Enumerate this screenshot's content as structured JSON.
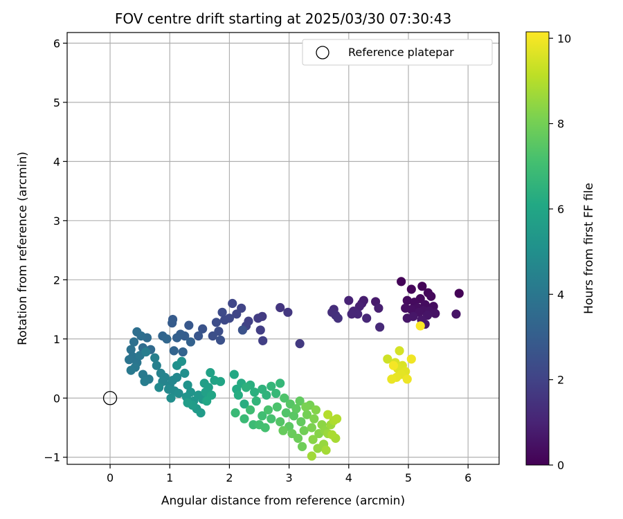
{
  "chart_data": {
    "type": "scatter",
    "title": "FOV centre drift starting at 2025/03/30 07:30:43",
    "xlabel": "Angular distance from reference (arcmin)",
    "ylabel": "Rotation from reference (arcmin)",
    "xlim": [
      -0.72,
      6.52
    ],
    "ylim": [
      -1.12,
      6.18
    ],
    "xticks": [
      0,
      1,
      2,
      3,
      4,
      5,
      6
    ],
    "yticks": [
      -1,
      0,
      1,
      2,
      3,
      4,
      5,
      6
    ],
    "grid": true,
    "legend": {
      "placement": "top-right",
      "entries": [
        "Reference platepar"
      ]
    },
    "reference_point": {
      "x": 0,
      "y": 0,
      "label": "Reference platepar"
    },
    "colorbar": {
      "label": "Hours from first FF file",
      "colormap": "viridis",
      "range": [
        0,
        10.15
      ],
      "ticks": [
        0,
        2,
        4,
        6,
        8,
        10
      ]
    },
    "points": [
      {
        "x": 5.85,
        "y": 1.77,
        "h": 0.05
      },
      {
        "x": 4.88,
        "y": 1.97,
        "h": 0.1
      },
      {
        "x": 5.23,
        "y": 1.89,
        "h": 0.12
      },
      {
        "x": 5.05,
        "y": 1.84,
        "h": 0.15
      },
      {
        "x": 5.33,
        "y": 1.78,
        "h": 0.18
      },
      {
        "x": 5.38,
        "y": 1.72,
        "h": 0.22
      },
      {
        "x": 5.2,
        "y": 1.68,
        "h": 0.25
      },
      {
        "x": 4.98,
        "y": 1.65,
        "h": 0.28
      },
      {
        "x": 5.1,
        "y": 1.62,
        "h": 0.3
      },
      {
        "x": 5.28,
        "y": 1.58,
        "h": 0.33
      },
      {
        "x": 5.42,
        "y": 1.55,
        "h": 0.35
      },
      {
        "x": 5.15,
        "y": 1.53,
        "h": 0.38
      },
      {
        "x": 4.95,
        "y": 1.52,
        "h": 0.4
      },
      {
        "x": 5.05,
        "y": 1.5,
        "h": 0.42
      },
      {
        "x": 5.25,
        "y": 1.48,
        "h": 0.45
      },
      {
        "x": 5.35,
        "y": 1.47,
        "h": 0.48
      },
      {
        "x": 5.18,
        "y": 1.45,
        "h": 0.5
      },
      {
        "x": 5.45,
        "y": 1.43,
        "h": 0.52
      },
      {
        "x": 5.8,
        "y": 1.42,
        "h": 0.55
      },
      {
        "x": 5.32,
        "y": 1.4,
        "h": 0.58
      },
      {
        "x": 5.08,
        "y": 1.38,
        "h": 0.6
      },
      {
        "x": 4.98,
        "y": 1.35,
        "h": 0.62
      },
      {
        "x": 5.22,
        "y": 1.32,
        "h": 0.65
      },
      {
        "x": 5.28,
        "y": 1.25,
        "h": 0.68
      },
      {
        "x": 4.45,
        "y": 1.63,
        "h": 0.75
      },
      {
        "x": 4.25,
        "y": 1.65,
        "h": 0.8
      },
      {
        "x": 4.22,
        "y": 1.6,
        "h": 0.85
      },
      {
        "x": 4.5,
        "y": 1.52,
        "h": 0.9
      },
      {
        "x": 4.18,
        "y": 1.55,
        "h": 0.95
      },
      {
        "x": 4.0,
        "y": 1.65,
        "h": 1.0
      },
      {
        "x": 4.08,
        "y": 1.47,
        "h": 1.05
      },
      {
        "x": 4.15,
        "y": 1.42,
        "h": 1.1
      },
      {
        "x": 4.05,
        "y": 1.42,
        "h": 1.12
      },
      {
        "x": 4.3,
        "y": 1.35,
        "h": 1.15
      },
      {
        "x": 4.52,
        "y": 1.2,
        "h": 1.2
      },
      {
        "x": 3.75,
        "y": 1.5,
        "h": 1.3
      },
      {
        "x": 3.72,
        "y": 1.45,
        "h": 1.35
      },
      {
        "x": 3.78,
        "y": 1.4,
        "h": 1.4
      },
      {
        "x": 3.82,
        "y": 1.35,
        "h": 1.45
      },
      {
        "x": 2.85,
        "y": 1.53,
        "h": 1.6
      },
      {
        "x": 2.98,
        "y": 1.45,
        "h": 1.65
      },
      {
        "x": 3.18,
        "y": 0.92,
        "h": 1.7
      },
      {
        "x": 2.55,
        "y": 1.38,
        "h": 1.75
      },
      {
        "x": 2.48,
        "y": 1.35,
        "h": 1.8
      },
      {
        "x": 2.52,
        "y": 1.15,
        "h": 1.85
      },
      {
        "x": 2.56,
        "y": 0.97,
        "h": 1.9
      },
      {
        "x": 2.32,
        "y": 1.3,
        "h": 1.95
      },
      {
        "x": 2.28,
        "y": 1.22,
        "h": 2.0
      },
      {
        "x": 2.2,
        "y": 1.52,
        "h": 2.05
      },
      {
        "x": 2.12,
        "y": 1.42,
        "h": 2.1
      },
      {
        "x": 2.05,
        "y": 1.6,
        "h": 2.15
      },
      {
        "x": 2.0,
        "y": 1.35,
        "h": 2.2
      },
      {
        "x": 1.92,
        "y": 1.32,
        "h": 2.25
      },
      {
        "x": 1.88,
        "y": 1.45,
        "h": 2.3
      },
      {
        "x": 1.78,
        "y": 1.28,
        "h": 2.35
      },
      {
        "x": 1.82,
        "y": 1.13,
        "h": 2.4
      },
      {
        "x": 1.72,
        "y": 1.05,
        "h": 2.45
      },
      {
        "x": 1.85,
        "y": 0.98,
        "h": 2.5
      },
      {
        "x": 2.22,
        "y": 1.15,
        "h": 2.55
      },
      {
        "x": 1.55,
        "y": 1.17,
        "h": 2.6
      },
      {
        "x": 1.48,
        "y": 1.05,
        "h": 2.7
      },
      {
        "x": 1.32,
        "y": 1.23,
        "h": 2.8
      },
      {
        "x": 1.05,
        "y": 1.33,
        "h": 2.9
      },
      {
        "x": 1.04,
        "y": 1.27,
        "h": 2.95
      },
      {
        "x": 1.25,
        "y": 1.05,
        "h": 3.0
      },
      {
        "x": 1.18,
        "y": 1.08,
        "h": 3.05
      },
      {
        "x": 1.12,
        "y": 1.02,
        "h": 3.1
      },
      {
        "x": 1.35,
        "y": 0.95,
        "h": 3.15
      },
      {
        "x": 1.22,
        "y": 0.78,
        "h": 3.2
      },
      {
        "x": 1.07,
        "y": 0.8,
        "h": 3.25
      },
      {
        "x": 0.88,
        "y": 1.05,
        "h": 3.3
      },
      {
        "x": 0.95,
        "y": 1.0,
        "h": 3.35
      },
      {
        "x": 0.68,
        "y": 0.82,
        "h": 3.5
      },
      {
        "x": 0.62,
        "y": 1.02,
        "h": 3.55
      },
      {
        "x": 0.55,
        "y": 0.85,
        "h": 3.6
      },
      {
        "x": 0.52,
        "y": 1.05,
        "h": 3.65
      },
      {
        "x": 0.45,
        "y": 1.12,
        "h": 3.7
      },
      {
        "x": 0.4,
        "y": 0.95,
        "h": 3.75
      },
      {
        "x": 0.35,
        "y": 0.82,
        "h": 3.8
      },
      {
        "x": 0.38,
        "y": 0.7,
        "h": 3.85
      },
      {
        "x": 0.32,
        "y": 0.65,
        "h": 3.9
      },
      {
        "x": 0.45,
        "y": 0.6,
        "h": 3.95
      },
      {
        "x": 0.5,
        "y": 0.72,
        "h": 4.0
      },
      {
        "x": 0.42,
        "y": 0.52,
        "h": 4.05
      },
      {
        "x": 0.35,
        "y": 0.47,
        "h": 4.1
      },
      {
        "x": 0.55,
        "y": 0.4,
        "h": 4.15
      },
      {
        "x": 0.65,
        "y": 0.32,
        "h": 4.2
      },
      {
        "x": 0.58,
        "y": 0.28,
        "h": 4.25
      },
      {
        "x": 0.6,
        "y": 0.78,
        "h": 4.3
      },
      {
        "x": 0.75,
        "y": 0.68,
        "h": 4.35
      },
      {
        "x": 0.78,
        "y": 0.55,
        "h": 4.4
      },
      {
        "x": 0.85,
        "y": 0.42,
        "h": 4.45
      },
      {
        "x": 0.92,
        "y": 0.35,
        "h": 4.5
      },
      {
        "x": 0.88,
        "y": 0.28,
        "h": 4.55
      },
      {
        "x": 1.0,
        "y": 0.22,
        "h": 4.6
      },
      {
        "x": 1.05,
        "y": 0.3,
        "h": 4.65
      },
      {
        "x": 1.12,
        "y": 0.35,
        "h": 4.7
      },
      {
        "x": 0.98,
        "y": 0.15,
        "h": 4.75
      },
      {
        "x": 0.82,
        "y": 0.18,
        "h": 4.8
      },
      {
        "x": 1.08,
        "y": 0.12,
        "h": 4.85
      },
      {
        "x": 1.15,
        "y": 0.08,
        "h": 4.9
      },
      {
        "x": 1.02,
        "y": 0.0,
        "h": 4.95
      },
      {
        "x": 1.25,
        "y": 0.42,
        "h": 5.0
      },
      {
        "x": 1.12,
        "y": 0.55,
        "h": 5.05
      },
      {
        "x": 1.2,
        "y": 0.62,
        "h": 5.1
      },
      {
        "x": 1.3,
        "y": 0.22,
        "h": 5.15
      },
      {
        "x": 1.35,
        "y": 0.1,
        "h": 5.2
      },
      {
        "x": 1.28,
        "y": 0.02,
        "h": 5.25
      },
      {
        "x": 1.4,
        "y": -0.05,
        "h": 5.3
      },
      {
        "x": 1.48,
        "y": 0.05,
        "h": 5.35
      },
      {
        "x": 1.55,
        "y": -0.02,
        "h": 5.4
      },
      {
        "x": 1.45,
        "y": -0.18,
        "h": 5.45
      },
      {
        "x": 1.52,
        "y": -0.25,
        "h": 5.5
      },
      {
        "x": 1.38,
        "y": -0.12,
        "h": 5.55
      },
      {
        "x": 1.3,
        "y": -0.08,
        "h": 5.6
      },
      {
        "x": 1.58,
        "y": 0.25,
        "h": 5.65
      },
      {
        "x": 1.65,
        "y": 0.18,
        "h": 5.7
      },
      {
        "x": 1.6,
        "y": 0.1,
        "h": 5.75
      },
      {
        "x": 1.68,
        "y": 0.43,
        "h": 5.8
      },
      {
        "x": 1.75,
        "y": 0.3,
        "h": 5.85
      },
      {
        "x": 1.85,
        "y": 0.28,
        "h": 5.9
      },
      {
        "x": 1.7,
        "y": 0.05,
        "h": 5.95
      },
      {
        "x": 1.62,
        "y": -0.05,
        "h": 6.0
      },
      {
        "x": 2.08,
        "y": 0.4,
        "h": 6.1
      },
      {
        "x": 2.12,
        "y": 0.15,
        "h": 6.15
      },
      {
        "x": 2.2,
        "y": 0.25,
        "h": 6.2
      },
      {
        "x": 2.15,
        "y": 0.05,
        "h": 6.25
      },
      {
        "x": 2.25,
        "y": -0.1,
        "h": 6.3
      },
      {
        "x": 2.35,
        "y": 0.22,
        "h": 6.35
      },
      {
        "x": 2.42,
        "y": 0.1,
        "h": 6.4
      },
      {
        "x": 2.28,
        "y": 0.18,
        "h": 6.45
      },
      {
        "x": 2.55,
        "y": 0.15,
        "h": 6.5
      },
      {
        "x": 2.62,
        "y": 0.05,
        "h": 6.55
      },
      {
        "x": 2.45,
        "y": -0.05,
        "h": 6.6
      },
      {
        "x": 2.7,
        "y": 0.2,
        "h": 6.65
      },
      {
        "x": 2.85,
        "y": 0.25,
        "h": 6.7
      },
      {
        "x": 2.78,
        "y": 0.08,
        "h": 6.75
      },
      {
        "x": 2.1,
        "y": -0.25,
        "h": 6.8
      },
      {
        "x": 2.25,
        "y": -0.35,
        "h": 6.85
      },
      {
        "x": 2.4,
        "y": -0.45,
        "h": 6.9
      },
      {
        "x": 2.35,
        "y": -0.2,
        "h": 6.95
      },
      {
        "x": 2.55,
        "y": -0.3,
        "h": 7.0
      },
      {
        "x": 2.5,
        "y": -0.45,
        "h": 7.05
      },
      {
        "x": 2.6,
        "y": -0.5,
        "h": 7.1
      },
      {
        "x": 2.7,
        "y": -0.35,
        "h": 7.15
      },
      {
        "x": 2.65,
        "y": -0.2,
        "h": 7.2
      },
      {
        "x": 2.8,
        "y": -0.15,
        "h": 7.25
      },
      {
        "x": 2.92,
        "y": 0.0,
        "h": 7.3
      },
      {
        "x": 2.95,
        "y": -0.25,
        "h": 7.35
      },
      {
        "x": 2.85,
        "y": -0.4,
        "h": 7.4
      },
      {
        "x": 3.02,
        "y": -0.1,
        "h": 7.45
      },
      {
        "x": 3.08,
        "y": -0.3,
        "h": 7.5
      },
      {
        "x": 3.0,
        "y": -0.48,
        "h": 7.55
      },
      {
        "x": 3.12,
        "y": -0.18,
        "h": 7.6
      },
      {
        "x": 3.18,
        "y": -0.05,
        "h": 7.65
      },
      {
        "x": 3.2,
        "y": -0.4,
        "h": 7.7
      },
      {
        "x": 2.9,
        "y": -0.55,
        "h": 7.75
      },
      {
        "x": 3.05,
        "y": -0.6,
        "h": 7.8
      },
      {
        "x": 3.15,
        "y": -0.68,
        "h": 7.85
      },
      {
        "x": 3.22,
        "y": -0.82,
        "h": 7.9
      },
      {
        "x": 3.25,
        "y": -0.55,
        "h": 7.95
      },
      {
        "x": 3.3,
        "y": -0.28,
        "h": 8.0
      },
      {
        "x": 3.35,
        "y": -0.12,
        "h": 8.05
      },
      {
        "x": 3.28,
        "y": -0.15,
        "h": 8.1
      },
      {
        "x": 3.38,
        "y": -0.5,
        "h": 8.15
      },
      {
        "x": 3.42,
        "y": -0.35,
        "h": 8.2
      },
      {
        "x": 3.45,
        "y": -0.2,
        "h": 8.25
      },
      {
        "x": 3.5,
        "y": -0.6,
        "h": 8.3
      },
      {
        "x": 3.4,
        "y": -0.7,
        "h": 8.35
      },
      {
        "x": 3.55,
        "y": -0.45,
        "h": 8.4
      },
      {
        "x": 3.6,
        "y": -0.55,
        "h": 8.45
      },
      {
        "x": 3.48,
        "y": -0.85,
        "h": 8.5
      },
      {
        "x": 3.58,
        "y": -0.78,
        "h": 8.55
      },
      {
        "x": 3.65,
        "y": -0.6,
        "h": 8.6
      },
      {
        "x": 3.7,
        "y": -0.45,
        "h": 8.65
      },
      {
        "x": 3.38,
        "y": -0.98,
        "h": 8.7
      },
      {
        "x": 3.62,
        "y": -0.88,
        "h": 8.75
      },
      {
        "x": 3.78,
        "y": -0.68,
        "h": 8.8
      },
      {
        "x": 3.72,
        "y": -0.62,
        "h": 8.85
      },
      {
        "x": 3.75,
        "y": -0.38,
        "h": 8.9
      },
      {
        "x": 3.8,
        "y": -0.35,
        "h": 8.95
      },
      {
        "x": 3.65,
        "y": -0.28,
        "h": 9.0
      },
      {
        "x": 4.65,
        "y": 0.66,
        "h": 9.4
      },
      {
        "x": 4.85,
        "y": 0.8,
        "h": 9.5
      },
      {
        "x": 4.78,
        "y": 0.6,
        "h": 9.55
      },
      {
        "x": 4.9,
        "y": 0.55,
        "h": 9.6
      },
      {
        "x": 4.82,
        "y": 0.5,
        "h": 9.65
      },
      {
        "x": 4.95,
        "y": 0.45,
        "h": 9.7
      },
      {
        "x": 4.88,
        "y": 0.4,
        "h": 9.75
      },
      {
        "x": 4.8,
        "y": 0.35,
        "h": 9.8
      },
      {
        "x": 4.72,
        "y": 0.32,
        "h": 9.85
      },
      {
        "x": 4.98,
        "y": 0.32,
        "h": 9.9
      },
      {
        "x": 5.05,
        "y": 0.66,
        "h": 9.95
      },
      {
        "x": 4.75,
        "y": 0.55,
        "h": 10.0
      },
      {
        "x": 5.2,
        "y": 1.22,
        "h": 10.1
      }
    ]
  }
}
